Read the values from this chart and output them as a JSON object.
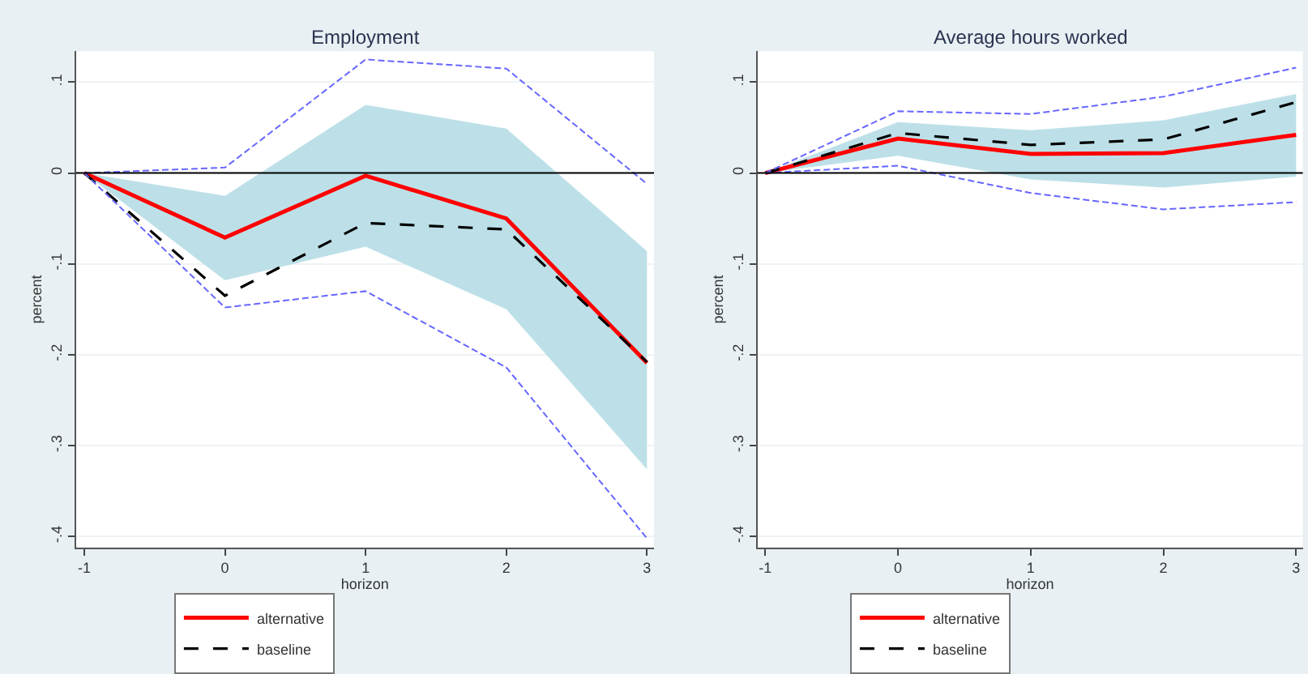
{
  "chart_data": [
    {
      "type": "line",
      "title": "Employment",
      "xlabel": "horizon",
      "ylabel": "percent",
      "x": [
        -1,
        0,
        1,
        2,
        3
      ],
      "xlim": [
        -1.06,
        3.05
      ],
      "xticks": [
        -1,
        0,
        1,
        2,
        3
      ],
      "ylim": [
        -0.412,
        0.134
      ],
      "yticks": [
        {
          "value": -0.4,
          "label": "-.4"
        },
        {
          "value": -0.3,
          "label": "-.3"
        },
        {
          "value": -0.2,
          "label": "-.2"
        },
        {
          "value": -0.1,
          "label": "-.1"
        },
        0,
        {
          "value": 0.1,
          "label": ".1"
        }
      ],
      "grid": "y",
      "legend": "bottom",
      "marker": "none",
      "ref_lines": [
        {
          "axis": "y",
          "value": 0,
          "color": "#000000"
        }
      ],
      "series": [
        {
          "name": "alternative",
          "color": "#ff0000",
          "line_style": "solid",
          "values": [
            0,
            -0.071,
            -0.003,
            -0.05,
            -0.209
          ],
          "lower": [
            0,
            -0.118,
            -0.081,
            -0.15,
            -0.326
          ],
          "upper": [
            0,
            -0.025,
            0.075,
            0.049,
            -0.086
          ]
        },
        {
          "name": "baseline",
          "color": "#000000",
          "line_style": "dashed",
          "values": [
            0,
            -0.135,
            -0.055,
            -0.062,
            -0.208
          ]
        },
        {
          "color": "#6666ff",
          "line_style": "dashed",
          "values": [
            0,
            0.006,
            0.125,
            0.115,
            -0.012
          ]
        },
        {
          "color": "#6666ff",
          "line_style": "dashed",
          "values": [
            0,
            -0.148,
            -0.13,
            -0.214,
            -0.402
          ]
        }
      ]
    },
    {
      "type": "line",
      "title": "Average hours worked",
      "xlabel": "horizon",
      "ylabel": "percent",
      "x": [
        -1,
        0,
        1,
        2,
        3
      ],
      "xlim": [
        -1.06,
        3.05
      ],
      "xticks": [
        -1,
        0,
        1,
        2,
        3
      ],
      "ylim": [
        -0.412,
        0.134
      ],
      "yticks": [
        {
          "value": -0.4,
          "label": "-.4"
        },
        {
          "value": -0.3,
          "label": "-.3"
        },
        {
          "value": -0.2,
          "label": "-.2"
        },
        {
          "value": -0.1,
          "label": "-.1"
        },
        0,
        {
          "value": 0.1,
          "label": ".1"
        }
      ],
      "grid": "y",
      "legend": "bottom",
      "marker": "none",
      "ref_lines": [
        {
          "axis": "y",
          "value": 0,
          "color": "#000000"
        }
      ],
      "series": [
        {
          "name": "alternative",
          "color": "#ff0000",
          "line_style": "solid",
          "values": [
            0,
            0.038,
            0.021,
            0.022,
            0.042
          ],
          "lower": [
            0,
            0.019,
            -0.007,
            -0.016,
            -0.004
          ],
          "upper": [
            0,
            0.056,
            0.047,
            0.058,
            0.087
          ]
        },
        {
          "name": "baseline",
          "color": "#000000",
          "line_style": "dashed",
          "values": [
            0,
            0.044,
            0.031,
            0.037,
            0.078
          ]
        },
        {
          "color": "#6666ff",
          "line_style": "dashed",
          "values": [
            0,
            0.068,
            0.065,
            0.084,
            0.116
          ]
        },
        {
          "color": "#6666ff",
          "line_style": "dashed",
          "values": [
            0,
            0.008,
            -0.022,
            -0.04,
            -0.032
          ]
        }
      ]
    }
  ]
}
